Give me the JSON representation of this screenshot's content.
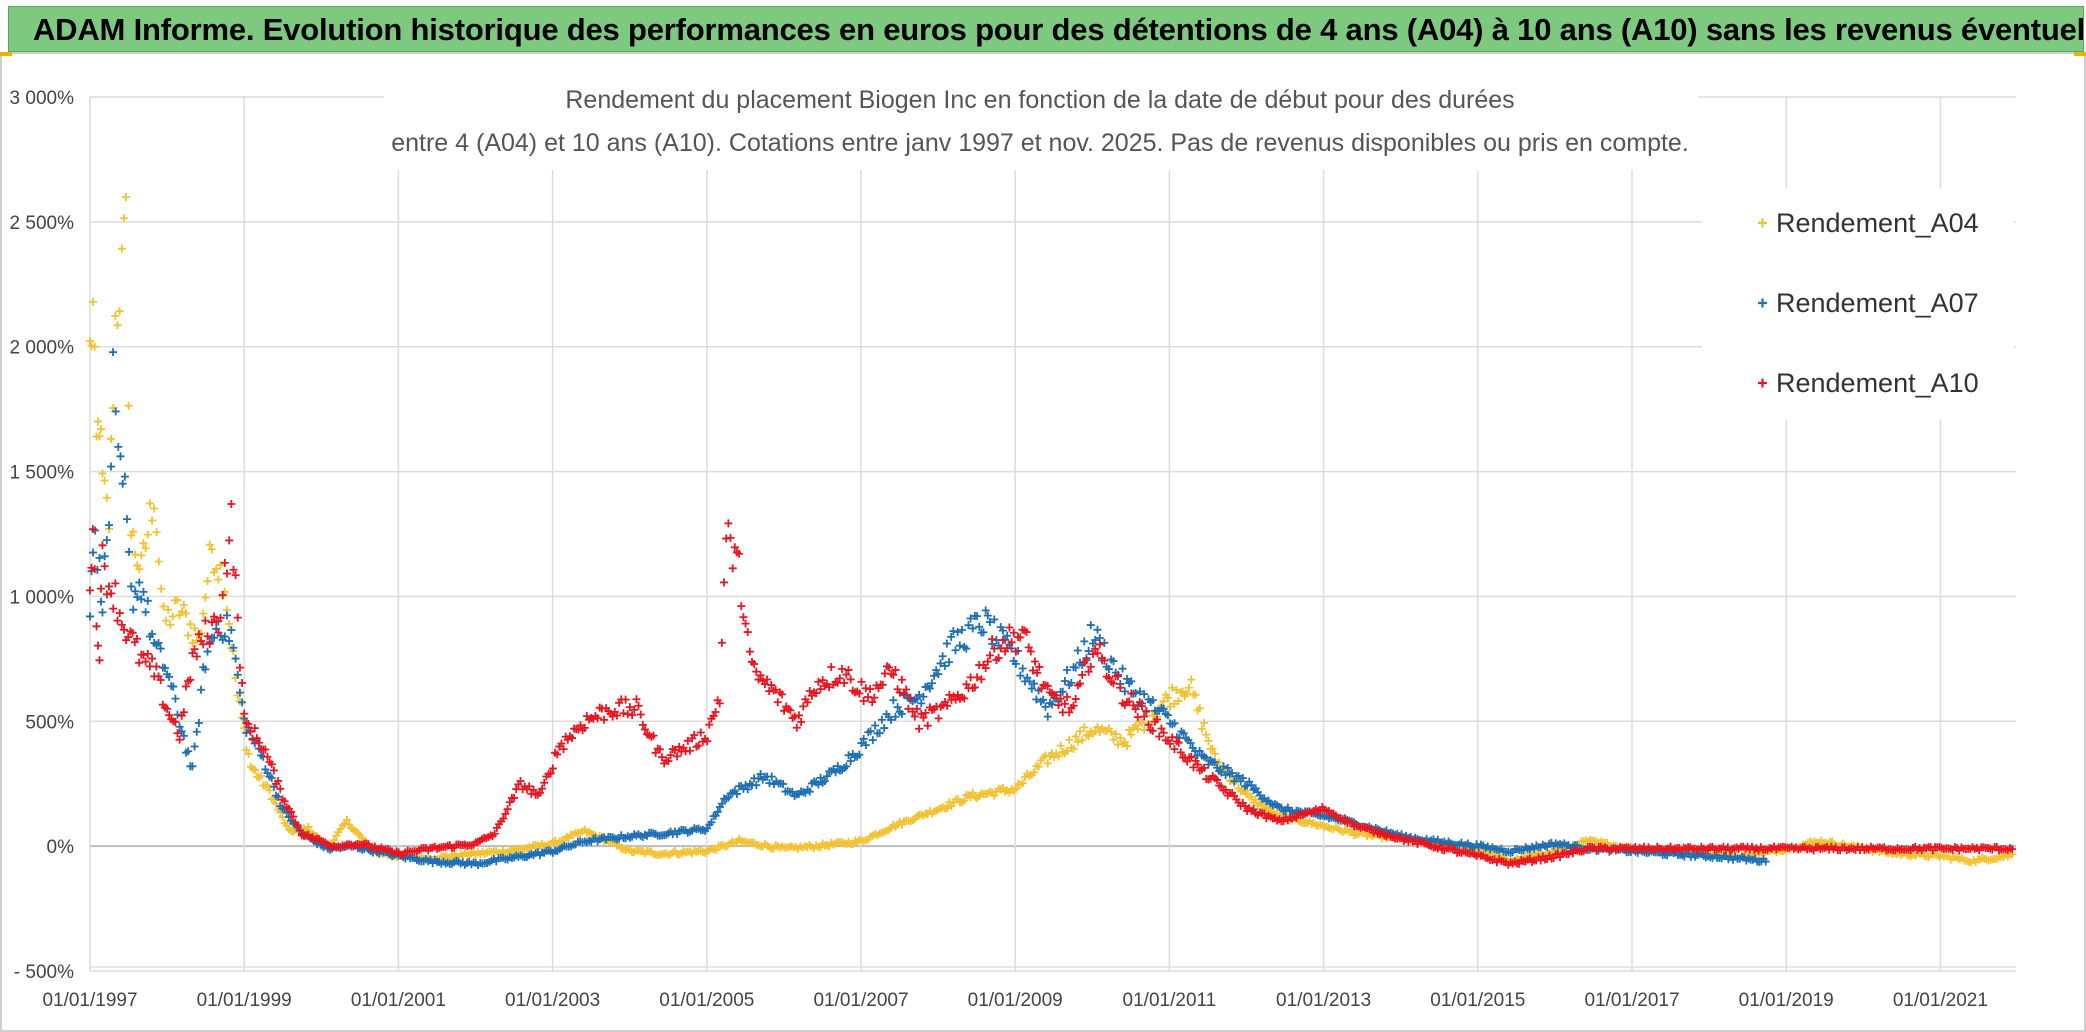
{
  "banner": {
    "title": "ADAM Informe. Evolution historique des performances en euros pour des détentions de 4 ans (A04) à 10 ans (A10) sans les revenus éventuels"
  },
  "colors": {
    "A04": "#f2c232",
    "A07": "#1f6fb3",
    "A10": "#e81620",
    "banner_bg": "#7dc97f"
  },
  "chart_data": {
    "type": "scatter",
    "marker": "plus",
    "title_line1": "Rendement du placement Biogen Inc en fonction de la date de début pour des durées",
    "title_line2": "entre 4 (A04) et 10 ans (A10). Cotations entre janv 1997 et nov. 2025. Pas de revenus disponibles ou pris en compte.",
    "x_tick_labels": [
      "01/01/1997",
      "01/01/1999",
      "01/01/2001",
      "01/01/2003",
      "01/01/2005",
      "01/01/2007",
      "01/01/2009",
      "01/01/2011",
      "01/01/2013",
      "01/01/2015",
      "01/01/2017",
      "01/01/2019",
      "01/01/2021"
    ],
    "y_tick_labels": [
      "3 000%",
      "2 500%",
      "2 000%",
      "1 500%",
      "1 000%",
      "500%",
      "0%",
      "- 500%"
    ],
    "ylim": [
      -500,
      3000
    ],
    "xlim": [
      "1997-01-01",
      "2022-01-01"
    ],
    "grid": true,
    "legend_position": "top-right",
    "series": [
      {
        "name": "Rendement_A04",
        "points": [
          [
            "1997-01-01",
            1980
          ],
          [
            "1997-01-15",
            2140
          ],
          [
            "1997-02-01",
            1600
          ],
          [
            "1997-02-15",
            1720
          ],
          [
            "1997-03-01",
            1450
          ],
          [
            "1997-04-01",
            1300
          ],
          [
            "1997-05-01",
            2100
          ],
          [
            "1997-06-01",
            2300
          ],
          [
            "1997-06-20",
            2480
          ],
          [
            "1997-07-15",
            1250
          ],
          [
            "1997-09-01",
            1100
          ],
          [
            "1997-11-01",
            1420
          ],
          [
            "1997-12-15",
            900
          ],
          [
            "1998-03-01",
            950
          ],
          [
            "1998-06-01",
            820
          ],
          [
            "1998-08-01",
            1200
          ],
          [
            "1998-10-01",
            1050
          ],
          [
            "1998-12-01",
            600
          ],
          [
            "1999-02-01",
            320
          ],
          [
            "1999-05-01",
            220
          ],
          [
            "1999-08-01",
            60
          ],
          [
            "1999-11-01",
            70
          ],
          [
            "2000-02-01",
            -10
          ],
          [
            "2000-05-01",
            100
          ],
          [
            "2000-09-01",
            -20
          ],
          [
            "2001-01-01",
            -40
          ],
          [
            "2001-06-01",
            -50
          ],
          [
            "2002-01-01",
            -30
          ],
          [
            "2002-06-01",
            -20
          ],
          [
            "2003-01-01",
            10
          ],
          [
            "2003-06-01",
            60
          ],
          [
            "2004-01-01",
            -20
          ],
          [
            "2004-06-01",
            -30
          ],
          [
            "2005-01-01",
            -20
          ],
          [
            "2005-06-01",
            20
          ],
          [
            "2006-01-01",
            -10
          ],
          [
            "2006-06-01",
            0
          ],
          [
            "2007-01-01",
            20
          ],
          [
            "2007-06-01",
            80
          ],
          [
            "2008-01-01",
            150
          ],
          [
            "2008-06-01",
            200
          ],
          [
            "2009-01-01",
            230
          ],
          [
            "2009-06-01",
            350
          ],
          [
            "2010-01-01",
            470
          ],
          [
            "2010-06-01",
            420
          ],
          [
            "2011-01-01",
            600
          ],
          [
            "2011-04-01",
            650
          ],
          [
            "2011-08-01",
            350
          ],
          [
            "2012-01-01",
            200
          ],
          [
            "2012-06-01",
            120
          ],
          [
            "2013-01-01",
            80
          ],
          [
            "2013-06-01",
            50
          ],
          [
            "2014-01-01",
            30
          ],
          [
            "2014-06-01",
            10
          ],
          [
            "2015-01-01",
            -10
          ],
          [
            "2015-06-01",
            -60
          ],
          [
            "2016-01-01",
            -20
          ],
          [
            "2016-06-01",
            20
          ],
          [
            "2017-01-01",
            -10
          ],
          [
            "2017-06-01",
            -20
          ],
          [
            "2018-01-01",
            -30
          ],
          [
            "2018-06-01",
            -40
          ],
          [
            "2019-01-01",
            -10
          ],
          [
            "2019-06-01",
            20
          ],
          [
            "2020-01-01",
            -10
          ],
          [
            "2020-06-01",
            -30
          ],
          [
            "2021-01-01",
            -40
          ],
          [
            "2021-06-01",
            -60
          ],
          [
            "2022-01-01",
            -30
          ]
        ]
      },
      {
        "name": "Rendement_A07",
        "points": [
          [
            "1997-01-01",
            950
          ],
          [
            "1997-01-15",
            1250
          ],
          [
            "1997-02-15",
            1100
          ],
          [
            "1997-03-01",
            1000
          ],
          [
            "1997-04-01",
            1300
          ],
          [
            "1997-04-20",
            1850
          ],
          [
            "1997-05-15",
            1500
          ],
          [
            "1997-06-15",
            1400
          ],
          [
            "1997-07-15",
            1000
          ],
          [
            "1997-09-01",
            1050
          ],
          [
            "1997-11-01",
            800
          ],
          [
            "1998-01-01",
            700
          ],
          [
            "1998-03-01",
            500
          ],
          [
            "1998-05-01",
            300
          ],
          [
            "1998-07-01",
            750
          ],
          [
            "1998-09-01",
            900
          ],
          [
            "1998-11-01",
            850
          ],
          [
            "1999-01-01",
            500
          ],
          [
            "1999-04-01",
            350
          ],
          [
            "1999-07-01",
            150
          ],
          [
            "1999-10-01",
            50
          ],
          [
            "2000-02-01",
            -10
          ],
          [
            "2000-06-01",
            0
          ],
          [
            "2001-01-01",
            -40
          ],
          [
            "2001-06-01",
            -60
          ],
          [
            "2002-01-01",
            -70
          ],
          [
            "2002-06-01",
            -50
          ],
          [
            "2003-01-01",
            -20
          ],
          [
            "2003-06-01",
            20
          ],
          [
            "2004-01-01",
            40
          ],
          [
            "2004-06-01",
            50
          ],
          [
            "2005-01-01",
            70
          ],
          [
            "2005-04-01",
            200
          ],
          [
            "2005-10-01",
            280
          ],
          [
            "2006-03-01",
            200
          ],
          [
            "2006-09-01",
            300
          ],
          [
            "2007-01-01",
            400
          ],
          [
            "2007-06-01",
            550
          ],
          [
            "2007-10-01",
            600
          ],
          [
            "2008-03-01",
            800
          ],
          [
            "2008-08-01",
            900
          ],
          [
            "2009-01-01",
            750
          ],
          [
            "2009-06-01",
            550
          ],
          [
            "2009-10-01",
            700
          ],
          [
            "2010-01-01",
            850
          ],
          [
            "2010-06-01",
            650
          ],
          [
            "2011-01-01",
            500
          ],
          [
            "2011-06-01",
            350
          ],
          [
            "2012-01-01",
            250
          ],
          [
            "2012-06-01",
            150
          ],
          [
            "2013-01-01",
            120
          ],
          [
            "2013-06-01",
            90
          ],
          [
            "2014-01-01",
            40
          ],
          [
            "2014-06-01",
            20
          ],
          [
            "2015-01-01",
            0
          ],
          [
            "2015-06-01",
            -20
          ],
          [
            "2016-01-01",
            10
          ],
          [
            "2016-06-01",
            -10
          ],
          [
            "2017-01-01",
            -20
          ],
          [
            "2017-06-01",
            -30
          ],
          [
            "2018-01-01",
            -40
          ],
          [
            "2018-06-01",
            -50
          ],
          [
            "2018-10-01",
            -60
          ]
        ]
      },
      {
        "name": "Rendement_A10",
        "points": [
          [
            "1997-01-01",
            1100
          ],
          [
            "1997-01-15",
            1250
          ],
          [
            "1997-02-01",
            900
          ],
          [
            "1997-02-15",
            800
          ],
          [
            "1997-03-01",
            1150
          ],
          [
            "1997-04-01",
            1050
          ],
          [
            "1997-05-01",
            1000
          ],
          [
            "1997-06-01",
            900
          ],
          [
            "1997-07-01",
            850
          ],
          [
            "1997-09-01",
            750
          ],
          [
            "1997-11-01",
            700
          ],
          [
            "1998-01-01",
            550
          ],
          [
            "1998-03-01",
            450
          ],
          [
            "1998-05-01",
            750
          ],
          [
            "1998-07-01",
            850
          ],
          [
            "1998-09-01",
            900
          ],
          [
            "1998-11-01",
            1300
          ],
          [
            "1999-01-01",
            500
          ],
          [
            "1999-04-01",
            400
          ],
          [
            "1999-07-01",
            200
          ],
          [
            "1999-10-01",
            50
          ],
          [
            "2000-03-01",
            0
          ],
          [
            "2000-07-01",
            10
          ],
          [
            "2001-01-01",
            -30
          ],
          [
            "2001-06-01",
            -10
          ],
          [
            "2002-01-01",
            10
          ],
          [
            "2002-04-01",
            50
          ],
          [
            "2002-08-01",
            250
          ],
          [
            "2002-11-01",
            200
          ],
          [
            "2003-02-01",
            400
          ],
          [
            "2003-06-01",
            500
          ],
          [
            "2003-10-01",
            550
          ],
          [
            "2004-02-01",
            550
          ],
          [
            "2004-06-01",
            350
          ],
          [
            "2004-10-01",
            400
          ],
          [
            "2005-01-01",
            450
          ],
          [
            "2005-03-01",
            600
          ],
          [
            "2005-04-01",
            1250
          ],
          [
            "2005-06-01",
            1100
          ],
          [
            "2005-08-01",
            700
          ],
          [
            "2005-12-01",
            600
          ],
          [
            "2006-03-01",
            500
          ],
          [
            "2006-06-01",
            650
          ],
          [
            "2006-10-01",
            700
          ],
          [
            "2007-02-01",
            600
          ],
          [
            "2007-06-01",
            700
          ],
          [
            "2007-10-01",
            500
          ],
          [
            "2008-02-01",
            550
          ],
          [
            "2008-06-01",
            650
          ],
          [
            "2008-10-01",
            800
          ],
          [
            "2009-02-01",
            850
          ],
          [
            "2009-06-01",
            600
          ],
          [
            "2009-10-01",
            550
          ],
          [
            "2010-01-01",
            800
          ],
          [
            "2010-06-01",
            600
          ],
          [
            "2010-10-01",
            500
          ],
          [
            "2011-02-01",
            400
          ],
          [
            "2011-06-01",
            300
          ],
          [
            "2012-01-01",
            150
          ],
          [
            "2012-06-01",
            100
          ],
          [
            "2013-01-01",
            150
          ],
          [
            "2013-06-01",
            80
          ],
          [
            "2014-01-01",
            30
          ],
          [
            "2014-06-01",
            0
          ],
          [
            "2015-01-01",
            -40
          ],
          [
            "2015-06-01",
            -70
          ],
          [
            "2016-01-01",
            -40
          ],
          [
            "2016-06-01",
            -10
          ],
          [
            "2017-01-01",
            -10
          ],
          [
            "2018-01-01",
            -10
          ],
          [
            "2019-01-01",
            -10
          ],
          [
            "2020-01-01",
            -10
          ],
          [
            "2021-01-01",
            -10
          ],
          [
            "2022-01-01",
            -10
          ]
        ]
      }
    ]
  }
}
